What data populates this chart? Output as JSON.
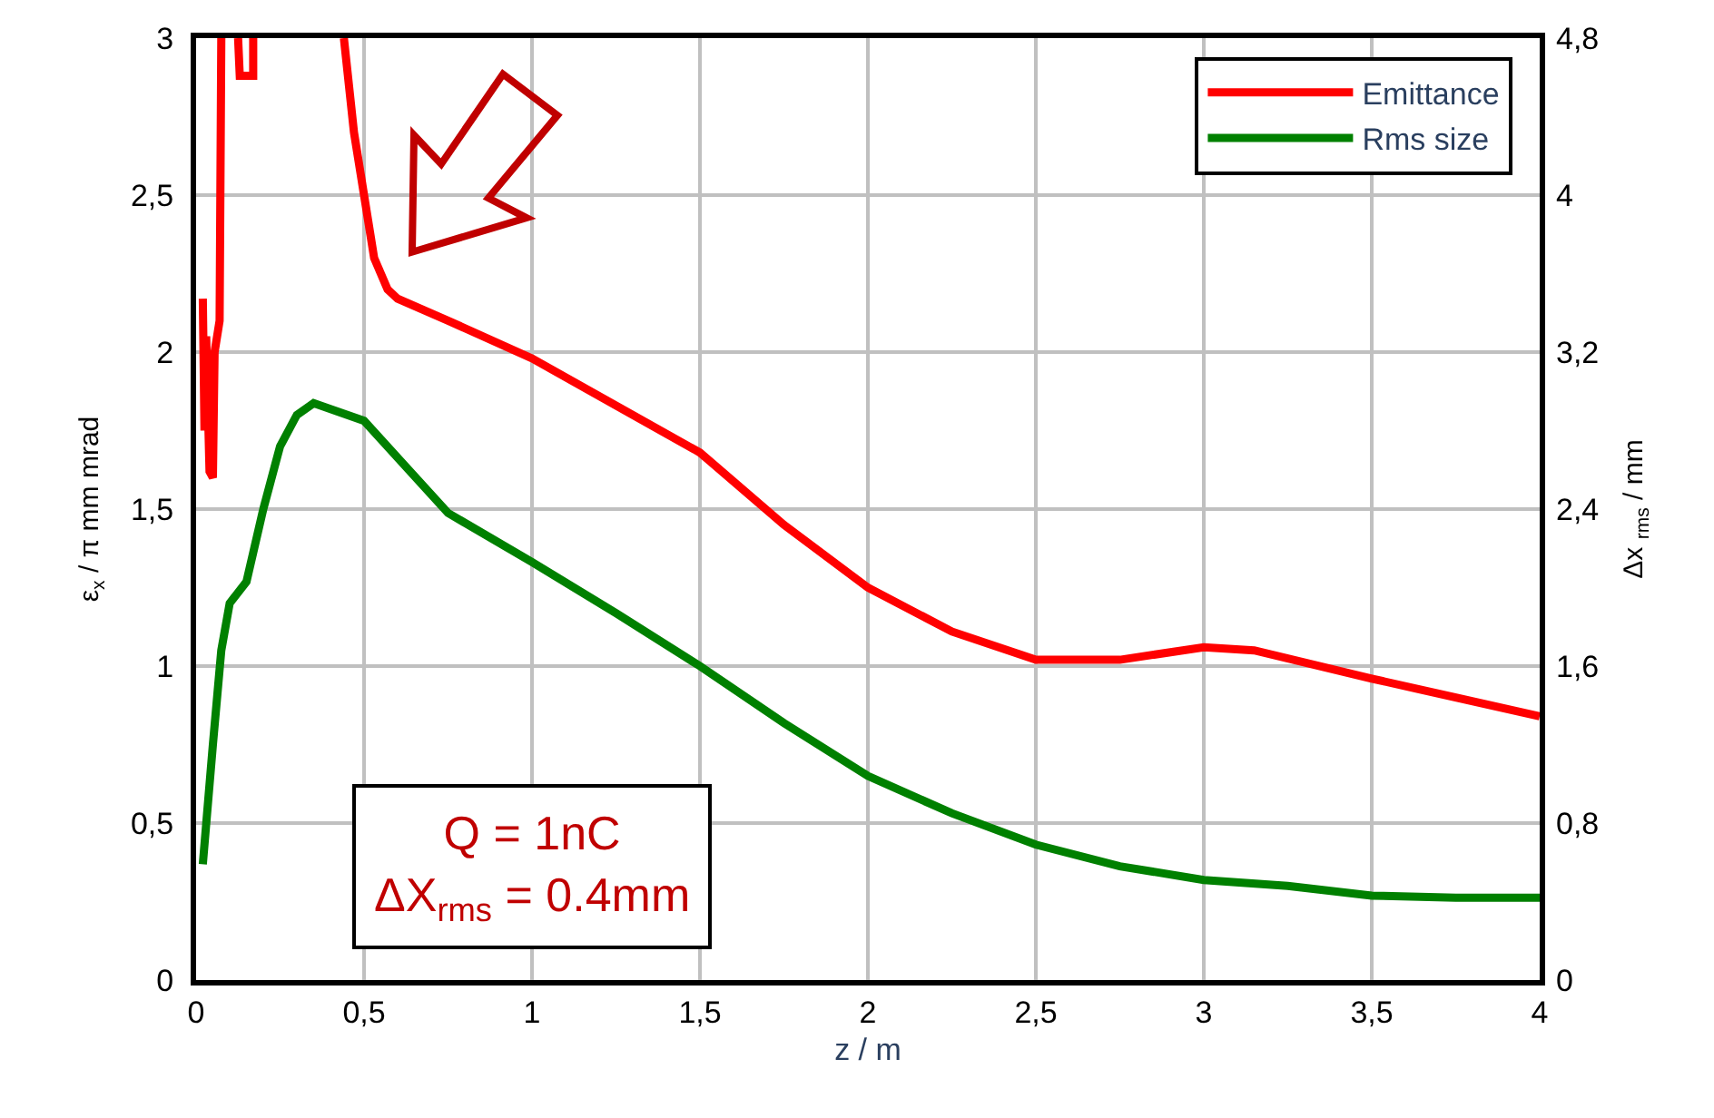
{
  "chart_data": {
    "type": "line",
    "xlabel": "z / m",
    "ylabel": "ε$_{x}$ / π mm mrad",
    "y2label": "Δx $_{rms}$ / mm",
    "xlim": [
      0,
      4
    ],
    "xticks": [
      0,
      {
        "value": 0.5,
        "label": "0,5"
      },
      1,
      {
        "value": 1.5,
        "label": "1,5"
      },
      2,
      {
        "value": 2.5,
        "label": "2,5"
      },
      3,
      {
        "value": 3.5,
        "label": "3,5"
      },
      4
    ],
    "ylim": [
      0,
      3
    ],
    "yticks": [
      0,
      {
        "value": 0.5,
        "label": "0,5"
      },
      1,
      {
        "value": 1.5,
        "label": "1,5"
      },
      2,
      {
        "value": 2.5,
        "label": "2,5"
      },
      3
    ],
    "y2lim": [
      0,
      4.8
    ],
    "y2ticks": [
      0,
      {
        "value": 0.8,
        "label": "0,8"
      },
      {
        "value": 1.6,
        "label": "1,6"
      },
      {
        "value": 2.4,
        "label": "2,4"
      },
      {
        "value": 3.2,
        "label": "3,2"
      },
      4,
      {
        "value": 4.8,
        "label": "4,8"
      }
    ],
    "grid": true,
    "legend": "top right",
    "marker": "none",
    "line_style": "solid",
    "annotations": [
      "Q = 1nC\nΔX$_{rms}$ = 0.4mm"
    ],
    "series": [
      {
        "name": "Emittance",
        "color": "#ff0000",
        "x": [
          0.02,
          0.025,
          0.03,
          0.04,
          0.05,
          0.055,
          0.07,
          0.075,
          0.1,
          0.125,
          0.13,
          0.17,
          0.17,
          0.3,
          0.44,
          0.47,
          0.5,
          0.53,
          0.57,
          0.6,
          0.75,
          1.0,
          1.25,
          1.5,
          1.75,
          2.0,
          2.25,
          2.5,
          2.75,
          3.0,
          3.15,
          3.5,
          4.0
        ],
        "values": [
          2.17,
          1.75,
          2.05,
          1.62,
          1.6,
          2.0,
          2.1,
          3,
          null,
          3,
          2.88,
          2.88,
          3,
          null,
          3,
          2.7,
          2.5,
          2.3,
          2.2,
          2.17,
          2.1,
          1.98,
          1.83,
          1.68,
          1.45,
          1.25,
          1.11,
          1.02,
          1.02,
          1.06,
          1.05,
          0.96,
          0.84
        ]
      },
      {
        "name": "Rms size",
        "color": "#008000",
        "axis": "y2",
        "x": [
          0.02,
          0.05,
          0.075,
          0.1,
          0.15,
          0.2,
          0.25,
          0.3,
          0.35,
          0.4,
          0.5,
          0.75,
          1.0,
          1.25,
          1.5,
          1.75,
          2.0,
          2.25,
          2.5,
          2.75,
          3.0,
          3.25,
          3.5,
          3.75,
          4.0
        ],
        "values": [
          0.59,
          1.2,
          1.68,
          1.92,
          2.03,
          2.4,
          2.72,
          2.88,
          2.94,
          2.91,
          2.85,
          2.38,
          2.13,
          1.87,
          1.6,
          1.31,
          1.04,
          0.85,
          0.69,
          0.58,
          0.51,
          0.48,
          0.43,
          0.42,
          0.42
        ]
      }
    ]
  }
}
